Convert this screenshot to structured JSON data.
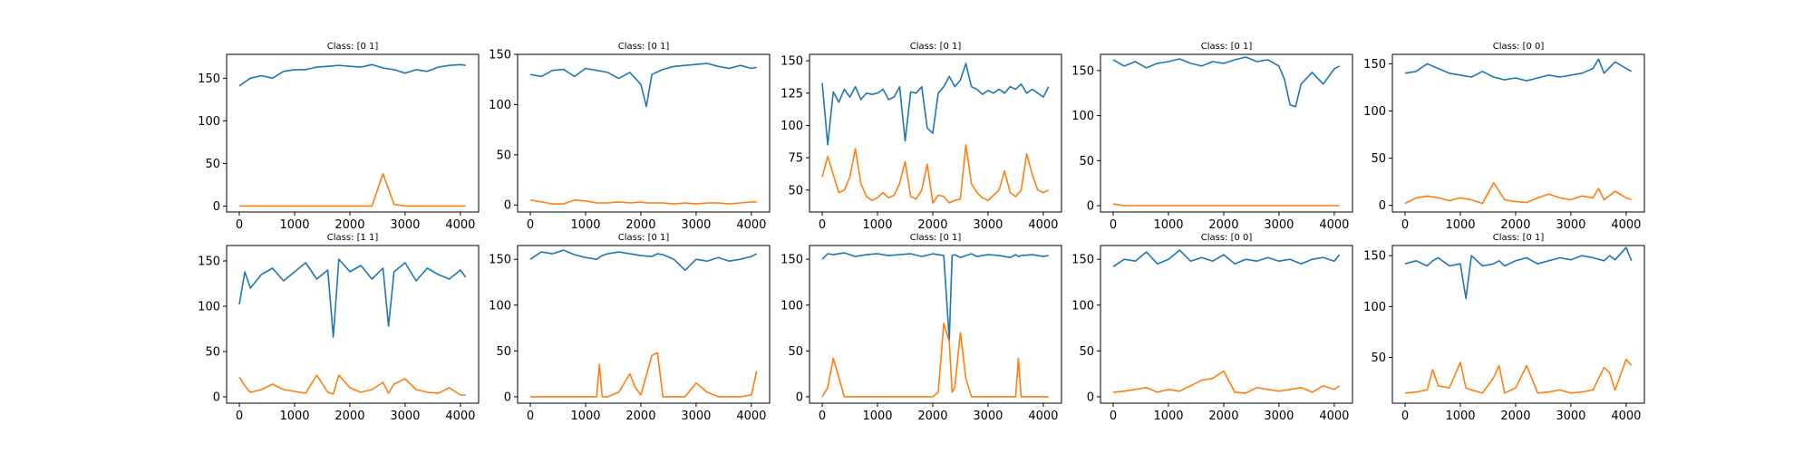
{
  "figure": {
    "colors": {
      "series_0": "#1f77b4",
      "series_1": "#ff7f0e",
      "frame": "#000000"
    },
    "x_ticks": [
      0,
      1000,
      2000,
      3000,
      4000
    ],
    "xlim": [
      -230,
      4330
    ],
    "n_points": 4096
  },
  "chart_data": [
    {
      "type": "line",
      "title": "Class: [0 1]",
      "xlabel": "",
      "ylabel": "",
      "xlim": [
        -230,
        4330
      ],
      "ylim": [
        -7,
        178
      ],
      "yticks": [
        0,
        50,
        100,
        150
      ],
      "grid": false,
      "x": [
        0,
        200,
        400,
        600,
        800,
        1000,
        1200,
        1400,
        1600,
        1800,
        2000,
        2200,
        2400,
        2600,
        2800,
        3000,
        3200,
        3400,
        3600,
        3800,
        4000,
        4096
      ],
      "series": [
        {
          "values": [
            141,
            150,
            153,
            150,
            158,
            160,
            160,
            163,
            164,
            165,
            164,
            163,
            166,
            162,
            160,
            156,
            160,
            158,
            163,
            165,
            166,
            165
          ]
        },
        {
          "values": [
            0,
            0,
            0,
            0,
            0,
            0,
            0,
            0,
            0,
            0,
            0,
            0,
            0,
            38,
            2,
            0,
            0,
            0,
            0,
            0,
            0,
            0
          ]
        }
      ]
    },
    {
      "type": "line",
      "title": "Class: [0 1]",
      "xlabel": "",
      "ylabel": "",
      "xlim": [
        -230,
        4330
      ],
      "ylim": [
        -7,
        150
      ],
      "yticks": [
        0,
        50,
        100,
        150
      ],
      "grid": false,
      "x": [
        0,
        200,
        400,
        600,
        800,
        1000,
        1200,
        1400,
        1600,
        1800,
        2000,
        2100,
        2200,
        2400,
        2600,
        2800,
        3000,
        3200,
        3400,
        3600,
        3800,
        4000,
        4096
      ],
      "series": [
        {
          "values": [
            130,
            128,
            134,
            135,
            128,
            136,
            134,
            132,
            126,
            132,
            120,
            98,
            130,
            135,
            138,
            139,
            140,
            141,
            138,
            136,
            139,
            136,
            137
          ]
        },
        {
          "values": [
            5,
            3,
            1,
            1,
            5,
            4,
            2,
            2,
            3,
            2,
            3,
            2,
            2,
            2,
            1,
            2,
            1,
            2,
            2,
            1,
            2,
            3,
            3
          ]
        }
      ]
    },
    {
      "type": "line",
      "title": "Class: [0 1]",
      "xlabel": "",
      "ylabel": "",
      "xlim": [
        -230,
        4330
      ],
      "ylim": [
        33,
        155
      ],
      "yticks": [
        50,
        75,
        100,
        125,
        150
      ],
      "grid": false,
      "x": [
        0,
        100,
        200,
        300,
        400,
        500,
        600,
        700,
        800,
        900,
        1000,
        1100,
        1200,
        1300,
        1400,
        1500,
        1600,
        1700,
        1800,
        1900,
        2000,
        2100,
        2200,
        2300,
        2400,
        2500,
        2600,
        2700,
        2800,
        2900,
        3000,
        3100,
        3200,
        3300,
        3400,
        3500,
        3600,
        3700,
        3800,
        3900,
        4000,
        4096
      ],
      "series": [
        {
          "values": [
            133,
            85,
            126,
            118,
            128,
            122,
            130,
            120,
            125,
            124,
            125,
            128,
            120,
            122,
            130,
            88,
            126,
            125,
            130,
            98,
            94,
            125,
            130,
            138,
            130,
            135,
            148,
            130,
            128,
            124,
            127,
            125,
            128,
            125,
            130,
            128,
            132,
            125,
            128,
            125,
            122,
            130
          ]
        },
        {
          "values": [
            60,
            76,
            62,
            48,
            50,
            60,
            82,
            55,
            45,
            42,
            44,
            48,
            44,
            46,
            55,
            72,
            45,
            43,
            50,
            70,
            40,
            46,
            45,
            40,
            42,
            43,
            85,
            55,
            48,
            44,
            42,
            46,
            50,
            65,
            48,
            45,
            50,
            78,
            62,
            50,
            48,
            50
          ]
        }
      ]
    },
    {
      "type": "line",
      "title": "Class: [0 1]",
      "xlabel": "",
      "ylabel": "",
      "xlim": [
        -230,
        4330
      ],
      "ylim": [
        -7,
        168
      ],
      "yticks": [
        0,
        50,
        100,
        150
      ],
      "grid": false,
      "x": [
        0,
        200,
        400,
        600,
        800,
        1000,
        1200,
        1400,
        1600,
        1800,
        2000,
        2200,
        2400,
        2600,
        2800,
        3000,
        3100,
        3200,
        3300,
        3400,
        3600,
        3800,
        4000,
        4096
      ],
      "series": [
        {
          "values": [
            162,
            155,
            160,
            153,
            158,
            160,
            163,
            158,
            155,
            160,
            158,
            162,
            165,
            160,
            162,
            155,
            140,
            112,
            110,
            135,
            148,
            135,
            152,
            155
          ]
        },
        {
          "values": [
            2,
            0,
            0,
            0,
            0,
            0,
            0,
            0,
            0,
            0,
            0,
            0,
            0,
            0,
            0,
            0,
            0,
            0,
            0,
            0,
            0,
            0,
            0,
            0
          ]
        }
      ]
    },
    {
      "type": "line",
      "title": "Class: [0 0]",
      "xlabel": "",
      "ylabel": "",
      "xlim": [
        -230,
        4330
      ],
      "ylim": [
        -7,
        160
      ],
      "yticks": [
        0,
        50,
        100,
        150
      ],
      "grid": false,
      "x": [
        0,
        200,
        400,
        600,
        800,
        1000,
        1200,
        1400,
        1600,
        1800,
        2000,
        2200,
        2400,
        2600,
        2800,
        3000,
        3200,
        3400,
        3500,
        3600,
        3800,
        4000,
        4096
      ],
      "series": [
        {
          "values": [
            140,
            142,
            150,
            145,
            140,
            138,
            136,
            142,
            136,
            133,
            135,
            132,
            135,
            138,
            136,
            138,
            140,
            145,
            155,
            140,
            152,
            145,
            142
          ]
        },
        {
          "values": [
            2,
            8,
            10,
            8,
            5,
            8,
            6,
            2,
            24,
            6,
            4,
            3,
            8,
            12,
            8,
            6,
            10,
            8,
            18,
            6,
            15,
            8,
            6
          ]
        }
      ]
    },
    {
      "type": "line",
      "title": "Class: [1 1]",
      "xlabel": "",
      "ylabel": "",
      "xlim": [
        -230,
        4330
      ],
      "ylim": [
        -7,
        167
      ],
      "yticks": [
        0,
        50,
        100,
        150
      ],
      "grid": false,
      "x": [
        0,
        100,
        200,
        400,
        600,
        800,
        1000,
        1200,
        1400,
        1600,
        1700,
        1800,
        2000,
        2200,
        2400,
        2600,
        2700,
        2800,
        3000,
        3200,
        3400,
        3600,
        3800,
        4000,
        4096
      ],
      "series": [
        {
          "values": [
            102,
            138,
            120,
            135,
            142,
            128,
            138,
            148,
            130,
            140,
            66,
            152,
            138,
            145,
            130,
            142,
            78,
            138,
            148,
            128,
            142,
            135,
            130,
            140,
            132
          ]
        },
        {
          "values": [
            22,
            12,
            5,
            8,
            14,
            8,
            6,
            4,
            24,
            5,
            3,
            24,
            10,
            5,
            8,
            16,
            4,
            14,
            20,
            8,
            5,
            4,
            10,
            2,
            2
          ]
        }
      ]
    },
    {
      "type": "line",
      "title": "Class: [0 1]",
      "xlabel": "",
      "ylabel": "",
      "xlim": [
        -230,
        4330
      ],
      "ylim": [
        -7,
        165
      ],
      "yticks": [
        0,
        50,
        100,
        150
      ],
      "grid": false,
      "x": [
        0,
        200,
        400,
        600,
        800,
        1000,
        1200,
        1250,
        1300,
        1400,
        1600,
        1800,
        1900,
        2000,
        2200,
        2300,
        2400,
        2600,
        2800,
        3000,
        3200,
        3400,
        3600,
        3800,
        4000,
        4096
      ],
      "series": [
        {
          "values": [
            150,
            158,
            156,
            160,
            155,
            152,
            150,
            152,
            154,
            156,
            158,
            156,
            155,
            154,
            153,
            156,
            155,
            150,
            138,
            150,
            148,
            152,
            148,
            150,
            153,
            156
          ]
        },
        {
          "values": [
            0,
            0,
            0,
            0,
            0,
            0,
            0,
            35,
            0,
            0,
            5,
            25,
            10,
            2,
            45,
            48,
            0,
            0,
            0,
            15,
            5,
            0,
            0,
            0,
            2,
            28
          ]
        }
      ]
    },
    {
      "type": "line",
      "title": "Class: [0 1]",
      "xlabel": "",
      "ylabel": "",
      "xlim": [
        -230,
        4330
      ],
      "ylim": [
        -7,
        165
      ],
      "yticks": [
        0,
        50,
        100,
        150
      ],
      "grid": false,
      "x": [
        0,
        100,
        200,
        400,
        600,
        800,
        1000,
        1200,
        1400,
        1600,
        1800,
        2000,
        2100,
        2200,
        2300,
        2350,
        2400,
        2500,
        2600,
        2700,
        2800,
        3000,
        3200,
        3400,
        3500,
        3550,
        3600,
        3800,
        4000,
        4096
      ],
      "series": [
        {
          "values": [
            150,
            156,
            155,
            157,
            153,
            155,
            156,
            154,
            155,
            156,
            153,
            156,
            155,
            154,
            62,
            154,
            155,
            152,
            154,
            156,
            153,
            155,
            154,
            152,
            155,
            153,
            154,
            155,
            153,
            154
          ]
        },
        {
          "values": [
            0,
            10,
            42,
            0,
            0,
            0,
            0,
            0,
            0,
            0,
            0,
            0,
            5,
            80,
            60,
            5,
            10,
            70,
            20,
            0,
            0,
            0,
            0,
            0,
            0,
            42,
            0,
            0,
            0,
            0
          ]
        }
      ]
    },
    {
      "type": "line",
      "title": "Class: [0 0]",
      "xlabel": "",
      "ylabel": "",
      "xlim": [
        -230,
        4330
      ],
      "ylim": [
        -7,
        165
      ],
      "yticks": [
        0,
        50,
        100,
        150
      ],
      "grid": false,
      "x": [
        0,
        200,
        400,
        600,
        800,
        1000,
        1200,
        1400,
        1600,
        1800,
        2000,
        2200,
        2400,
        2600,
        2800,
        3000,
        3200,
        3400,
        3600,
        3800,
        4000,
        4096
      ],
      "series": [
        {
          "values": [
            142,
            150,
            148,
            158,
            145,
            150,
            160,
            148,
            152,
            148,
            155,
            145,
            150,
            148,
            152,
            148,
            150,
            145,
            150,
            152,
            148,
            155
          ]
        },
        {
          "values": [
            5,
            6,
            8,
            10,
            5,
            8,
            6,
            12,
            18,
            20,
            28,
            5,
            4,
            10,
            8,
            6,
            8,
            10,
            5,
            12,
            8,
            12
          ]
        }
      ]
    },
    {
      "type": "line",
      "title": "Class: [0 1]",
      "xlabel": "",
      "ylabel": "",
      "xlim": [
        -230,
        4330
      ],
      "ylim": [
        5,
        160
      ],
      "yticks": [
        50,
        100,
        150
      ],
      "grid": false,
      "x": [
        0,
        200,
        400,
        500,
        600,
        800,
        1000,
        1100,
        1200,
        1400,
        1600,
        1700,
        1800,
        2000,
        2200,
        2400,
        2600,
        2800,
        3000,
        3200,
        3400,
        3600,
        3700,
        3800,
        4000,
        4096
      ],
      "series": [
        {
          "values": [
            142,
            145,
            140,
            145,
            148,
            140,
            142,
            108,
            150,
            140,
            142,
            145,
            140,
            145,
            148,
            142,
            145,
            148,
            146,
            150,
            148,
            145,
            150,
            146,
            158,
            145
          ]
        },
        {
          "values": [
            15,
            16,
            18,
            38,
            22,
            20,
            45,
            20,
            18,
            15,
            30,
            42,
            15,
            20,
            42,
            15,
            16,
            18,
            15,
            16,
            18,
            40,
            35,
            18,
            48,
            42
          ]
        }
      ]
    }
  ]
}
